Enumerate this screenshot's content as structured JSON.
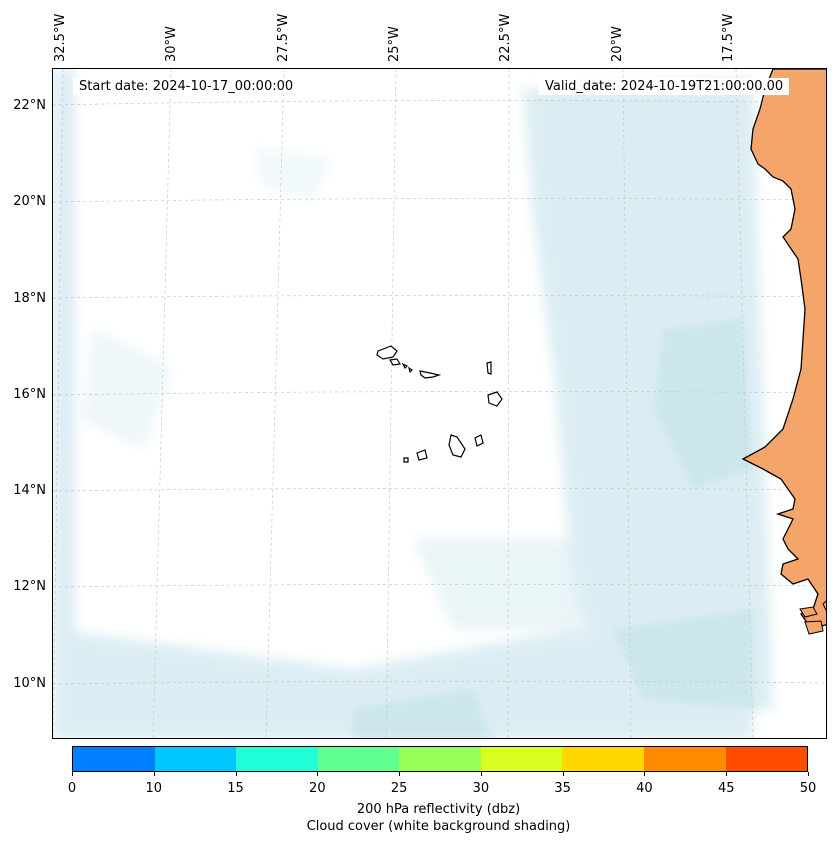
{
  "map": {
    "start_date": "Start date: 2024-10-17_00:00:00",
    "valid_date": "Valid_date: 2024-10-19T21:00:00.00",
    "longitude_labels": [
      "32.5°W",
      "30°W",
      "27.5°W",
      "25°W",
      "22.5°W",
      "20°W",
      "17.5°W"
    ],
    "latitude_labels": [
      "22°N",
      "20°N",
      "18°N",
      "16°N",
      "14°N",
      "12°N",
      "10°N"
    ],
    "land_color": "#f4a56a",
    "cloud_color": "#bfe0ea"
  },
  "colorbar": {
    "ticks": [
      "0",
      "10",
      "15",
      "20",
      "25",
      "30",
      "35",
      "40",
      "45",
      "50"
    ],
    "colors": [
      "#0080ff",
      "#00c8ff",
      "#20ffd8",
      "#60ff90",
      "#98ff58",
      "#d8ff20",
      "#ffd800",
      "#ff8c00",
      "#ff4c00"
    ],
    "label_line1": "200 hPa reflectivity (dbz)",
    "label_line2": "Cloud cover (white background shading)"
  }
}
